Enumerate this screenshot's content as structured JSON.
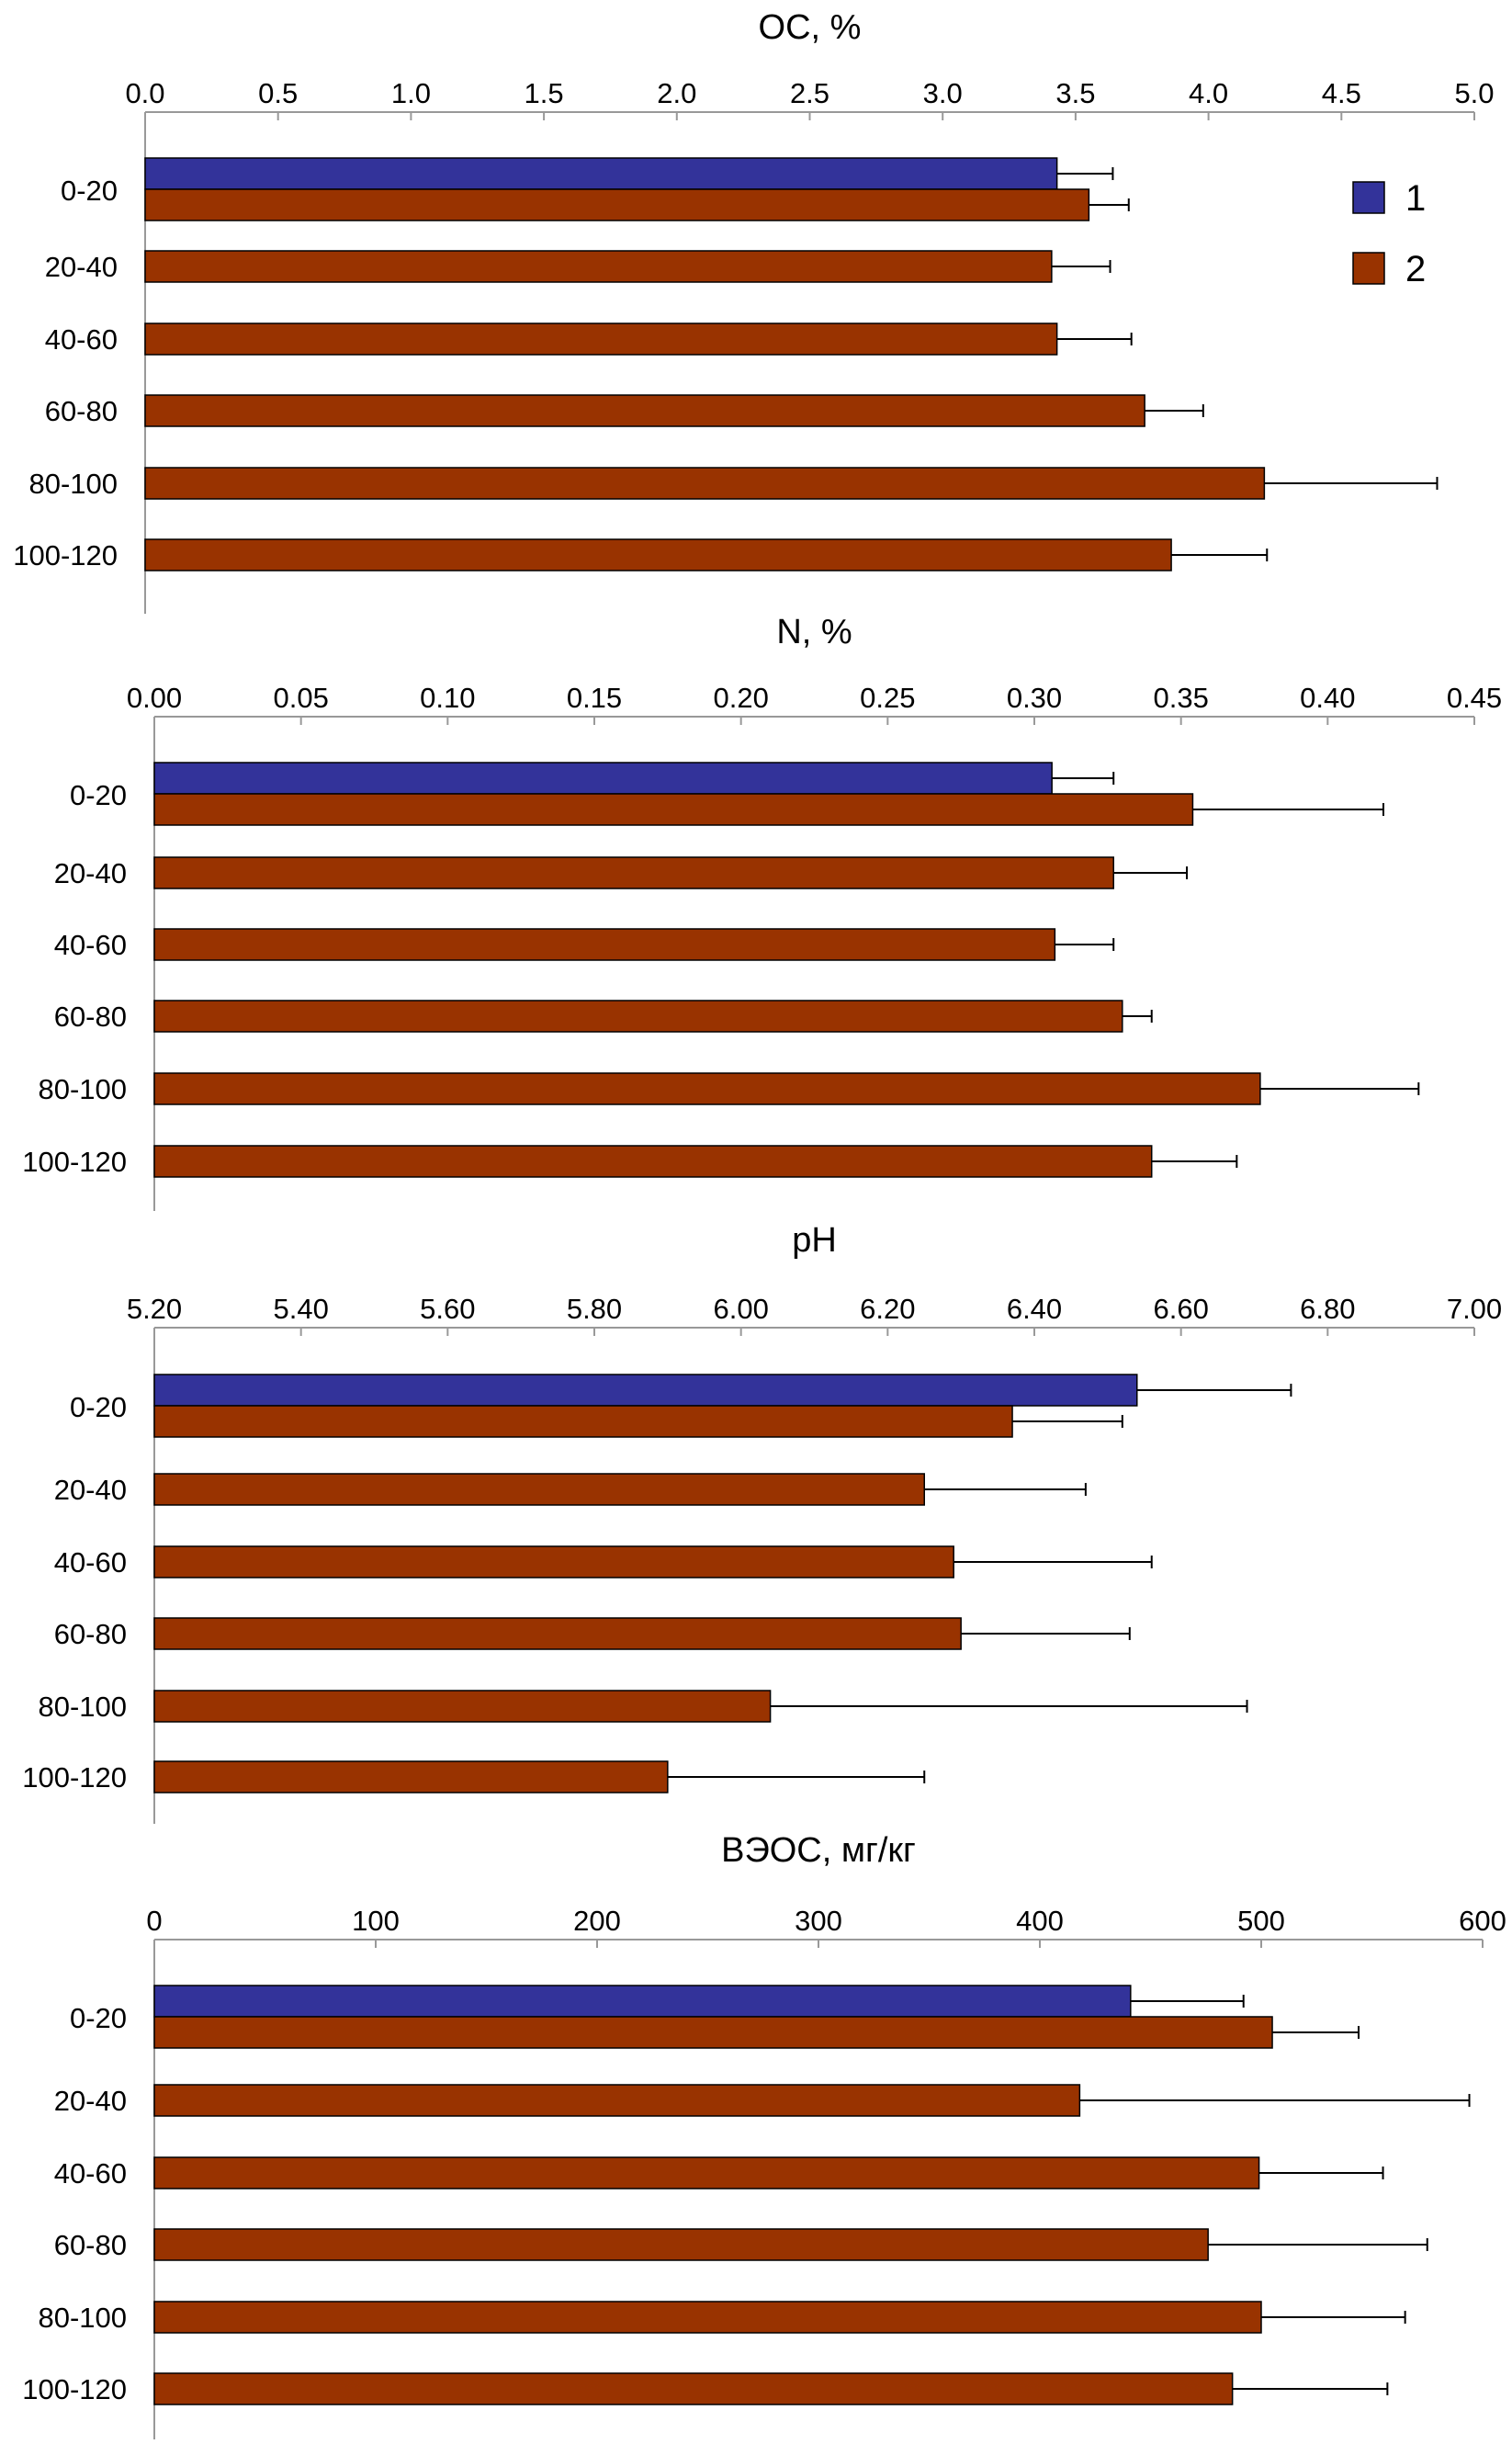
{
  "legend": {
    "items": [
      {
        "label": "1",
        "color": "#33339a"
      },
      {
        "label": "2",
        "color": "#993300"
      }
    ]
  },
  "chart_data": [
    {
      "type": "bar",
      "orientation": "horizontal",
      "title": "ОС, %",
      "categories": [
        "0-20",
        "20-40",
        "40-60",
        "60-80",
        "80-100",
        "100-120"
      ],
      "xlim": [
        0,
        5
      ],
      "ticks": [
        "0.0",
        "0.5",
        "1.0",
        "1.5",
        "2.0",
        "2.5",
        "3.0",
        "3.5",
        "4.0",
        "4.5",
        "5.0"
      ],
      "tick_values": [
        0,
        0.5,
        1.0,
        1.5,
        2.0,
        2.5,
        3.0,
        3.5,
        4.0,
        4.5,
        5.0
      ],
      "series": [
        {
          "name": "1",
          "color": "#33339a",
          "values": [
            3.43,
            null,
            null,
            null,
            null,
            null
          ],
          "errors": [
            0.21,
            null,
            null,
            null,
            null,
            null
          ]
        },
        {
          "name": "2",
          "color": "#993300",
          "values": [
            3.55,
            3.41,
            3.43,
            3.76,
            4.21,
            3.86
          ],
          "errors": [
            0.15,
            0.22,
            0.28,
            0.22,
            0.65,
            0.36
          ]
        }
      ]
    },
    {
      "type": "bar",
      "orientation": "horizontal",
      "title": "N, %",
      "categories": [
        "0-20",
        "20-40",
        "40-60",
        "60-80",
        "80-100",
        "100-120"
      ],
      "xlim": [
        0,
        0.45
      ],
      "ticks": [
        "0.00",
        "0.05",
        "0.10",
        "0.15",
        "0.20",
        "0.25",
        "0.30",
        "0.35",
        "0.40",
        "0.45"
      ],
      "tick_values": [
        0,
        0.05,
        0.1,
        0.15,
        0.2,
        0.25,
        0.3,
        0.35,
        0.4,
        0.45
      ],
      "series": [
        {
          "name": "1",
          "color": "#33339a",
          "values": [
            0.306,
            null,
            null,
            null,
            null,
            null
          ],
          "errors": [
            0.021,
            null,
            null,
            null,
            null,
            null
          ]
        },
        {
          "name": "2",
          "color": "#993300",
          "values": [
            0.354,
            0.327,
            0.307,
            0.33,
            0.377,
            0.34
          ],
          "errors": [
            0.065,
            0.025,
            0.02,
            0.01,
            0.054,
            0.029
          ]
        }
      ]
    },
    {
      "type": "bar",
      "orientation": "horizontal",
      "title": "pH",
      "categories": [
        "0-20",
        "20-40",
        "40-60",
        "60-80",
        "80-100",
        "100-120"
      ],
      "xlim": [
        5.2,
        7.0
      ],
      "ticks": [
        "5.20",
        "5.40",
        "5.60",
        "5.80",
        "6.00",
        "6.20",
        "6.40",
        "6.60",
        "6.80",
        "7.00"
      ],
      "tick_values": [
        5.2,
        5.4,
        5.6,
        5.8,
        6.0,
        6.2,
        6.4,
        6.6,
        6.8,
        7.0
      ],
      "series": [
        {
          "name": "1",
          "color": "#33339a",
          "values": [
            6.54,
            null,
            null,
            null,
            null,
            null
          ],
          "errors": [
            0.21,
            null,
            null,
            null,
            null,
            null
          ]
        },
        {
          "name": "2",
          "color": "#993300",
          "values": [
            6.37,
            6.25,
            6.29,
            6.3,
            6.04,
            5.9
          ],
          "errors": [
            0.15,
            0.22,
            0.27,
            0.23,
            0.65,
            0.35
          ]
        }
      ]
    },
    {
      "type": "bar",
      "orientation": "horizontal",
      "title": "ВЭОС, мг/кг",
      "categories": [
        "0-20",
        "20-40",
        "40-60",
        "60-80",
        "80-100",
        "100-120"
      ],
      "xlim": [
        0,
        600
      ],
      "ticks": [
        "0",
        "100",
        "200",
        "300",
        "400",
        "500",
        "600"
      ],
      "tick_values": [
        0,
        100,
        200,
        300,
        400,
        500,
        600
      ],
      "series": [
        {
          "name": "1",
          "color": "#33339a",
          "values": [
            441,
            null,
            null,
            null,
            null,
            null
          ],
          "errors": [
            51,
            null,
            null,
            null,
            null,
            null
          ]
        },
        {
          "name": "2",
          "color": "#993300",
          "values": [
            505,
            418,
            499,
            476,
            500,
            487
          ],
          "errors": [
            39,
            176,
            56,
            99,
            65,
            70
          ]
        }
      ]
    }
  ]
}
